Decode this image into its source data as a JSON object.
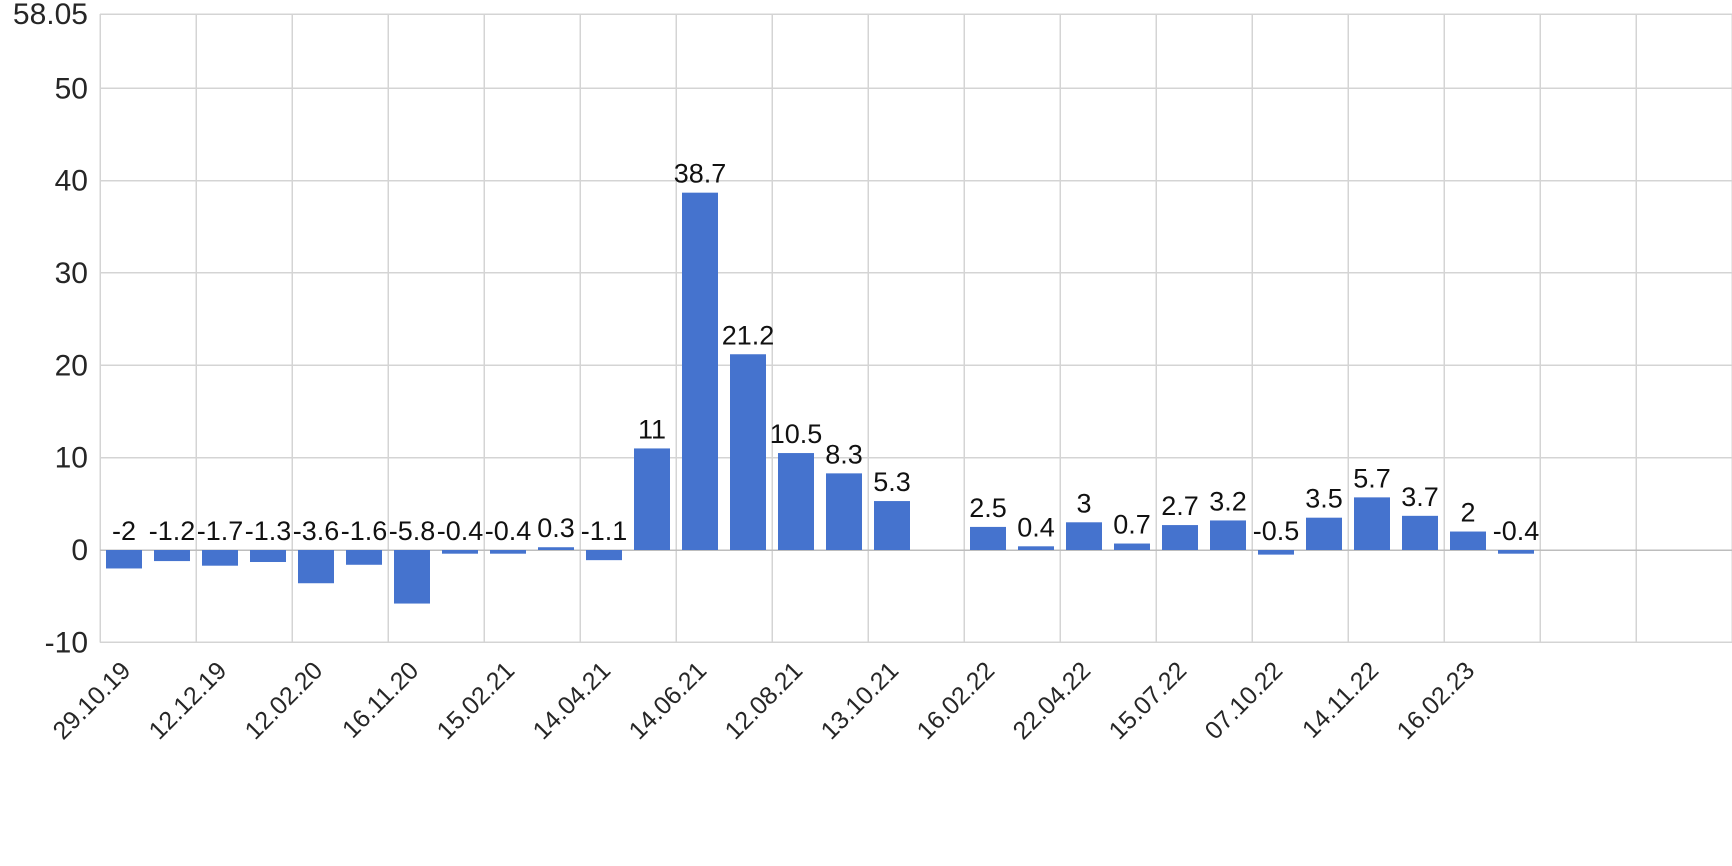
{
  "chart": {
    "background_color": "#ffffff",
    "bar_color": "#4573ce",
    "grid_color": "#d4d4d4",
    "zero_line_color": "#bdbdbd",
    "axis_text_color": "#262626",
    "value_label_color": "#111111"
  },
  "chart_data": {
    "type": "bar",
    "title": "",
    "xlabel": "",
    "ylabel": "",
    "ylim": [
      -10,
      58.05
    ],
    "y_ticks": [
      58.05,
      50,
      40,
      30,
      20,
      10,
      0,
      -10
    ],
    "y_tick_labels": [
      "58.05",
      "50",
      "40",
      "30",
      "20",
      "10",
      "0",
      "-10"
    ],
    "grid": true,
    "legend": false,
    "total_slots": 34,
    "values": [
      -2,
      -1.2,
      -1.7,
      -1.3,
      -3.6,
      -1.6,
      -5.8,
      -0.4,
      -0.4,
      0.3,
      -1.1,
      11,
      38.7,
      21.2,
      10.5,
      8.3,
      5.3,
      null,
      2.5,
      0.4,
      3,
      0.7,
      2.7,
      3.2,
      -0.5,
      3.5,
      5.7,
      3.7,
      2,
      -0.4
    ],
    "value_labels": [
      "-2",
      "-1.2",
      "-1.7",
      "-1.3",
      "-3.6",
      "-1.6",
      "-5.8",
      "-0.4",
      "-0.4",
      "0.3",
      "-1.1",
      "11",
      "38.7",
      "21.2",
      "10.5",
      "8.3",
      "5.3",
      null,
      "2.5",
      "0.4",
      "3",
      "0.7",
      "2.7",
      "3.2",
      "-0.5",
      "3.5",
      "5.7",
      "3.7",
      "2",
      "-0.4"
    ],
    "x_tick_labels": [
      "29.10.19",
      "12.12.19",
      "12.02.20",
      "16.11.20",
      "15.02.21",
      "14.04.21",
      "14.06.21",
      "12.08.21",
      "13.10.21",
      "16.02.22",
      "22.04.22",
      "15.07.22",
      "07.10.22",
      "14.11.22",
      "16.02.23"
    ],
    "x_tick_slots": [
      0,
      2,
      4,
      6,
      8,
      10,
      12,
      14,
      16,
      18,
      20,
      22,
      24,
      26,
      28
    ]
  }
}
